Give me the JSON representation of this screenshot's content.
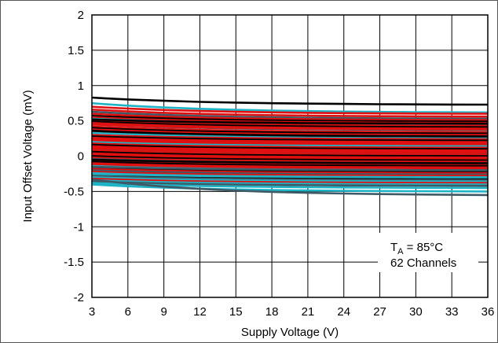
{
  "chart_data": {
    "type": "line",
    "title": "",
    "xlabel": "Supply Voltage (V)",
    "ylabel": "Input Offset Voltage (mV)",
    "xlim": [
      3,
      36
    ],
    "ylim": [
      -2,
      2
    ],
    "x_ticks": [
      "3",
      "6",
      "9",
      "12",
      "15",
      "18",
      "21",
      "24",
      "27",
      "30",
      "33",
      "36"
    ],
    "y_ticks": [
      "2",
      "1.5",
      "1",
      "0.5",
      "0",
      "-0.5",
      "-1",
      "-1.5",
      "-2"
    ],
    "grid": true,
    "legend": null,
    "annotation": {
      "line1_main": "T",
      "line1_sub": "A",
      "line1_rest": " = 85°C",
      "line2": "62 Channels",
      "placement": "bottom-right"
    },
    "colors": {
      "black": "#000000",
      "red": "#e01010",
      "cyan": "#1fb3c6",
      "slate": "#3d5a66"
    },
    "x": [
      3,
      4,
      6,
      9,
      12,
      15,
      18,
      21,
      24,
      27,
      30,
      33,
      36
    ],
    "series_start_values": [
      0.83,
      0.75,
      0.7,
      0.66,
      0.63,
      0.6,
      0.57,
      0.55,
      0.53,
      0.51,
      0.49,
      0.47,
      0.45,
      0.42,
      0.4,
      0.38,
      0.35,
      0.33,
      0.3,
      0.28,
      0.26,
      0.24,
      0.22,
      0.2,
      0.18,
      0.16,
      0.14,
      0.12,
      0.1,
      0.08,
      0.06,
      0.04,
      0.02,
      0.0,
      -0.02,
      -0.04,
      -0.06,
      -0.08,
      -0.1,
      -0.12,
      -0.14,
      -0.16,
      -0.18,
      -0.2,
      -0.22,
      -0.24,
      -0.26,
      -0.28,
      -0.3,
      -0.32,
      -0.34,
      -0.36,
      -0.38,
      -0.4,
      0.52,
      0.36,
      0.11,
      -0.05,
      -0.15,
      -0.25,
      0.45,
      -0.33
    ],
    "series_end_values": [
      0.73,
      0.62,
      0.6,
      0.56,
      0.53,
      0.51,
      0.49,
      0.47,
      0.45,
      0.43,
      0.41,
      0.39,
      0.37,
      0.34,
      0.32,
      0.3,
      0.28,
      0.26,
      0.24,
      0.22,
      0.2,
      0.18,
      0.16,
      0.14,
      0.12,
      0.1,
      0.08,
      0.06,
      0.04,
      0.02,
      0.0,
      -0.02,
      -0.04,
      -0.06,
      -0.08,
      -0.1,
      -0.12,
      -0.14,
      -0.16,
      -0.18,
      -0.2,
      -0.22,
      -0.24,
      -0.26,
      -0.28,
      -0.3,
      -0.32,
      -0.34,
      -0.36,
      -0.38,
      -0.4,
      -0.42,
      -0.45,
      -0.5,
      0.46,
      0.28,
      0.05,
      -0.1,
      -0.2,
      -0.3,
      0.38,
      -0.55
    ],
    "series_colors": [
      "black",
      "cyan",
      "red",
      "red",
      "slate",
      "red",
      "black",
      "red",
      "cyan",
      "red",
      "black",
      "red",
      "slate",
      "red",
      "black",
      "red",
      "red",
      "cyan",
      "red",
      "black",
      "red",
      "red",
      "red",
      "cyan",
      "red",
      "black",
      "red",
      "red",
      "slate",
      "red",
      "black",
      "red",
      "red",
      "black",
      "red",
      "slate",
      "red",
      "black",
      "red",
      "red",
      "cyan",
      "black",
      "red",
      "slate",
      "red",
      "cyan",
      "black",
      "slate",
      "cyan",
      "red",
      "cyan",
      "slate",
      "cyan",
      "cyan",
      "black",
      "black",
      "red",
      "black",
      "slate",
      "cyan",
      "red",
      "slate"
    ]
  }
}
